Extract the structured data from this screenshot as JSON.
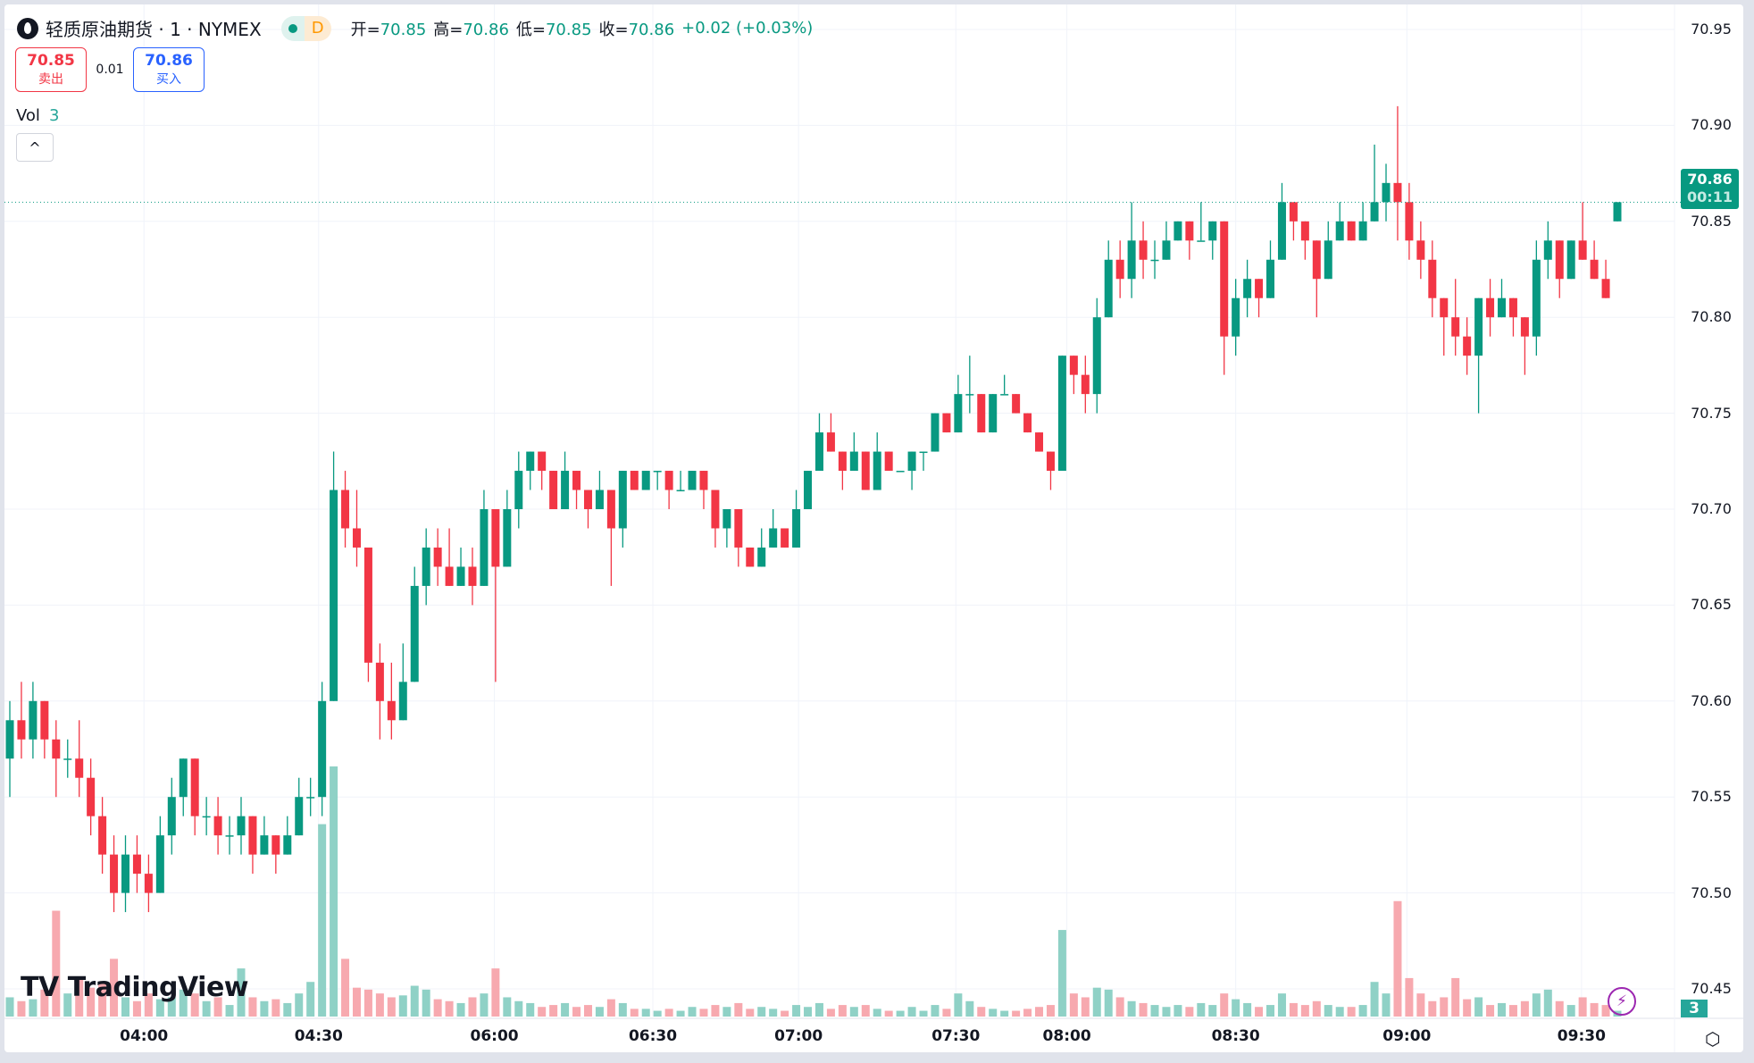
{
  "header": {
    "symbol_title": "轻质原油期货 · 1 · NYMEX",
    "market_status": "D",
    "ohlc": [
      {
        "label": "开=",
        "value": "70.85"
      },
      {
        "label": "高=",
        "value": "70.86"
      },
      {
        "label": "低=",
        "value": "70.85"
      },
      {
        "label": "收=",
        "value": "70.86"
      }
    ],
    "change": "+0.02 (+0.03%)"
  },
  "trade": {
    "sell_price": "70.85",
    "sell_label": "卖出",
    "spread": "0.01",
    "buy_price": "70.86",
    "buy_label": "买入"
  },
  "volume_legend": {
    "label": "Vol",
    "value": "3"
  },
  "collapse_label": "^",
  "watermark": "TradingView",
  "current_price": {
    "price": "70.86",
    "countdown": "00:11"
  },
  "volume_tag": "3",
  "colors": {
    "up": "#089981",
    "down": "#f23645",
    "vol_up": "#8fd1c6",
    "vol_down": "#f7a9af",
    "grid": "#f0f3fa"
  },
  "icons": {
    "logo": "oil-drop-icon",
    "alert": "lightning-icon",
    "settings": "hexagon-settings-icon"
  },
  "chart_data": {
    "type": "candlestick",
    "price_ticks": [
      "70.95",
      "70.90",
      "70.85",
      "70.80",
      "70.75",
      "70.70",
      "70.65",
      "70.60",
      "70.55",
      "70.50",
      "70.45"
    ],
    "ylim": [
      70.45,
      70.95
    ],
    "time_ticks": [
      {
        "label": "04:00",
        "bar": 11.6
      },
      {
        "label": "04:30",
        "bar": 26.7
      },
      {
        "label": "06:00",
        "bar": 41.9
      },
      {
        "label": "06:30",
        "bar": 55.6
      },
      {
        "label": "07:00",
        "bar": 68.2
      },
      {
        "label": "07:30",
        "bar": 81.8
      },
      {
        "label": "08:00",
        "bar": 91.4
      },
      {
        "label": "08:30",
        "bar": 106
      },
      {
        "label": "09:00",
        "bar": 120.8
      },
      {
        "label": "09:30",
        "bar": 135.9
      }
    ],
    "grid": true,
    "last_price": 70.86,
    "candles_ohlcv": [
      [
        70.57,
        70.6,
        70.55,
        70.59,
        10
      ],
      [
        70.59,
        70.61,
        70.57,
        70.58,
        8
      ],
      [
        70.58,
        70.61,
        70.57,
        70.6,
        9
      ],
      [
        70.6,
        70.6,
        70.57,
        70.58,
        14
      ],
      [
        70.58,
        70.59,
        70.55,
        70.57,
        55
      ],
      [
        70.57,
        70.58,
        70.56,
        70.57,
        12
      ],
      [
        70.57,
        70.59,
        70.55,
        70.56,
        20
      ],
      [
        70.56,
        70.57,
        70.53,
        70.54,
        15
      ],
      [
        70.54,
        70.55,
        70.51,
        70.52,
        18
      ],
      [
        70.52,
        70.53,
        70.49,
        70.5,
        30
      ],
      [
        70.5,
        70.53,
        70.49,
        70.52,
        10
      ],
      [
        70.52,
        70.53,
        70.5,
        70.51,
        8
      ],
      [
        70.51,
        70.52,
        70.49,
        70.5,
        12
      ],
      [
        70.5,
        70.54,
        70.5,
        70.53,
        9
      ],
      [
        70.53,
        70.56,
        70.52,
        70.55,
        10
      ],
      [
        70.55,
        70.57,
        70.54,
        70.57,
        14
      ],
      [
        70.57,
        70.57,
        70.53,
        70.54,
        12
      ],
      [
        70.54,
        70.55,
        70.53,
        70.54,
        8
      ],
      [
        70.54,
        70.55,
        70.52,
        70.53,
        10
      ],
      [
        70.53,
        70.54,
        70.52,
        70.53,
        6
      ],
      [
        70.53,
        70.55,
        70.52,
        70.54,
        25
      ],
      [
        70.54,
        70.54,
        70.51,
        70.52,
        10
      ],
      [
        70.52,
        70.54,
        70.52,
        70.53,
        8
      ],
      [
        70.53,
        70.53,
        70.51,
        70.52,
        9
      ],
      [
        70.52,
        70.54,
        70.52,
        70.53,
        7
      ],
      [
        70.53,
        70.56,
        70.53,
        70.55,
        12
      ],
      [
        70.55,
        70.56,
        70.54,
        70.55,
        18
      ],
      [
        70.55,
        70.61,
        70.54,
        70.6,
        100
      ],
      [
        70.6,
        70.73,
        70.6,
        70.71,
        130
      ],
      [
        70.71,
        70.72,
        70.68,
        70.69,
        30
      ],
      [
        70.69,
        70.71,
        70.67,
        70.68,
        15
      ],
      [
        70.68,
        70.68,
        70.61,
        70.62,
        14
      ],
      [
        70.62,
        70.63,
        70.58,
        70.6,
        12
      ],
      [
        70.6,
        70.62,
        70.58,
        70.59,
        10
      ],
      [
        70.59,
        70.63,
        70.59,
        70.61,
        11
      ],
      [
        70.61,
        70.67,
        70.61,
        70.66,
        16
      ],
      [
        70.66,
        70.69,
        70.65,
        70.68,
        14
      ],
      [
        70.68,
        70.69,
        70.66,
        70.67,
        9
      ],
      [
        70.67,
        70.69,
        70.66,
        70.66,
        8
      ],
      [
        70.66,
        70.68,
        70.66,
        70.67,
        7
      ],
      [
        70.67,
        70.68,
        70.65,
        70.66,
        10
      ],
      [
        70.66,
        70.71,
        70.66,
        70.7,
        12
      ],
      [
        70.7,
        70.7,
        70.61,
        70.67,
        25
      ],
      [
        70.67,
        70.71,
        70.67,
        70.7,
        10
      ],
      [
        70.7,
        70.73,
        70.69,
        70.72,
        8
      ],
      [
        70.72,
        70.73,
        70.71,
        70.73,
        7
      ],
      [
        70.73,
        70.73,
        70.71,
        70.72,
        5
      ],
      [
        70.72,
        70.72,
        70.7,
        70.7,
        6
      ],
      [
        70.7,
        70.73,
        70.7,
        70.72,
        7
      ],
      [
        70.72,
        70.72,
        70.7,
        70.71,
        5
      ],
      [
        70.71,
        70.71,
        70.69,
        70.7,
        6
      ],
      [
        70.7,
        70.72,
        70.7,
        70.71,
        5
      ],
      [
        70.71,
        70.71,
        70.66,
        70.69,
        9
      ],
      [
        70.69,
        70.72,
        70.68,
        70.72,
        7
      ],
      [
        70.72,
        70.72,
        70.71,
        70.71,
        4
      ],
      [
        70.71,
        70.72,
        70.71,
        70.72,
        4
      ],
      [
        70.72,
        70.72,
        70.71,
        70.72,
        3
      ],
      [
        70.72,
        70.72,
        70.7,
        70.71,
        4
      ],
      [
        70.71,
        70.72,
        70.71,
        70.71,
        3
      ],
      [
        70.71,
        70.72,
        70.71,
        70.72,
        5
      ],
      [
        70.72,
        70.72,
        70.7,
        70.71,
        4
      ],
      [
        70.71,
        70.71,
        70.68,
        70.69,
        6
      ],
      [
        70.69,
        70.7,
        70.68,
        70.7,
        5
      ],
      [
        70.7,
        70.7,
        70.67,
        70.68,
        7
      ],
      [
        70.68,
        70.68,
        70.67,
        70.67,
        4
      ],
      [
        70.67,
        70.69,
        70.67,
        70.68,
        5
      ],
      [
        70.68,
        70.7,
        70.68,
        70.69,
        4
      ],
      [
        70.69,
        70.69,
        70.68,
        70.68,
        3
      ],
      [
        70.68,
        70.71,
        70.68,
        70.7,
        6
      ],
      [
        70.7,
        70.72,
        70.7,
        70.72,
        5
      ],
      [
        70.72,
        70.75,
        70.72,
        70.74,
        7
      ],
      [
        70.74,
        70.75,
        70.73,
        70.73,
        4
      ],
      [
        70.73,
        70.73,
        70.71,
        70.72,
        6
      ],
      [
        70.72,
        70.74,
        70.72,
        70.73,
        5
      ],
      [
        70.73,
        70.73,
        70.71,
        70.71,
        6
      ],
      [
        70.71,
        70.74,
        70.71,
        70.73,
        4
      ],
      [
        70.73,
        70.73,
        70.72,
        70.72,
        3
      ],
      [
        70.72,
        70.72,
        70.72,
        70.72,
        3
      ],
      [
        70.72,
        70.73,
        70.71,
        70.73,
        5
      ],
      [
        70.73,
        70.73,
        70.72,
        70.73,
        3
      ],
      [
        70.73,
        70.75,
        70.73,
        70.75,
        6
      ],
      [
        70.75,
        70.75,
        70.74,
        70.74,
        4
      ],
      [
        70.74,
        70.77,
        70.74,
        70.76,
        12
      ],
      [
        70.76,
        70.78,
        70.75,
        70.76,
        8
      ],
      [
        70.76,
        70.76,
        70.74,
        70.74,
        5
      ],
      [
        70.74,
        70.76,
        70.74,
        70.76,
        4
      ],
      [
        70.76,
        70.77,
        70.76,
        70.76,
        3
      ],
      [
        70.76,
        70.76,
        70.75,
        70.75,
        3
      ],
      [
        70.75,
        70.75,
        70.74,
        70.74,
        4
      ],
      [
        70.74,
        70.74,
        70.73,
        70.73,
        5
      ],
      [
        70.73,
        70.73,
        70.71,
        70.72,
        6
      ],
      [
        70.72,
        70.78,
        70.72,
        70.78,
        45
      ],
      [
        70.78,
        70.78,
        70.76,
        70.77,
        12
      ],
      [
        70.77,
        70.78,
        70.75,
        70.76,
        10
      ],
      [
        70.76,
        70.81,
        70.75,
        70.8,
        15
      ],
      [
        70.8,
        70.84,
        70.8,
        70.83,
        14
      ],
      [
        70.83,
        70.84,
        70.81,
        70.82,
        10
      ],
      [
        70.82,
        70.86,
        70.81,
        70.84,
        8
      ],
      [
        70.84,
        70.85,
        70.82,
        70.83,
        7
      ],
      [
        70.83,
        70.84,
        70.82,
        70.83,
        6
      ],
      [
        70.83,
        70.85,
        70.83,
        70.84,
        5
      ],
      [
        70.84,
        70.85,
        70.84,
        70.85,
        6
      ],
      [
        70.85,
        70.85,
        70.83,
        70.84,
        5
      ],
      [
        70.84,
        70.86,
        70.84,
        70.84,
        7
      ],
      [
        70.84,
        70.85,
        70.83,
        70.85,
        6
      ],
      [
        70.85,
        70.85,
        70.77,
        70.79,
        12
      ],
      [
        70.79,
        70.82,
        70.78,
        70.81,
        9
      ],
      [
        70.81,
        70.83,
        70.8,
        70.82,
        7
      ],
      [
        70.82,
        70.82,
        70.8,
        70.81,
        5
      ],
      [
        70.81,
        70.84,
        70.81,
        70.83,
        6
      ],
      [
        70.83,
        70.87,
        70.83,
        70.86,
        12
      ],
      [
        70.86,
        70.86,
        70.84,
        70.85,
        7
      ],
      [
        70.85,
        70.85,
        70.83,
        70.84,
        6
      ],
      [
        70.84,
        70.84,
        70.8,
        70.82,
        8
      ],
      [
        70.82,
        70.85,
        70.82,
        70.84,
        6
      ],
      [
        70.84,
        70.86,
        70.84,
        70.85,
        5
      ],
      [
        70.85,
        70.85,
        70.84,
        70.84,
        5
      ],
      [
        70.84,
        70.86,
        70.84,
        70.85,
        6
      ],
      [
        70.85,
        70.89,
        70.85,
        70.86,
        18
      ],
      [
        70.86,
        70.88,
        70.85,
        70.87,
        12
      ],
      [
        70.87,
        70.91,
        70.84,
        70.86,
        60
      ],
      [
        70.86,
        70.87,
        70.83,
        70.84,
        20
      ],
      [
        70.84,
        70.85,
        70.82,
        70.83,
        12
      ],
      [
        70.83,
        70.84,
        70.8,
        70.81,
        8
      ],
      [
        70.81,
        70.81,
        70.78,
        70.8,
        10
      ],
      [
        70.8,
        70.82,
        70.78,
        70.79,
        20
      ],
      [
        70.79,
        70.8,
        70.77,
        70.78,
        9
      ],
      [
        70.78,
        70.81,
        70.75,
        70.81,
        10
      ],
      [
        70.81,
        70.82,
        70.79,
        70.8,
        6
      ],
      [
        70.8,
        70.82,
        70.8,
        70.81,
        7
      ],
      [
        70.81,
        70.81,
        70.79,
        70.8,
        6
      ],
      [
        70.8,
        70.8,
        70.77,
        70.79,
        8
      ],
      [
        70.79,
        70.84,
        70.78,
        70.83,
        12
      ],
      [
        70.83,
        70.85,
        70.82,
        70.84,
        14
      ],
      [
        70.84,
        70.84,
        70.81,
        70.82,
        8
      ],
      [
        70.82,
        70.84,
        70.82,
        70.84,
        6
      ],
      [
        70.84,
        70.86,
        70.83,
        70.83,
        10
      ],
      [
        70.83,
        70.84,
        70.82,
        70.82,
        7
      ],
      [
        70.82,
        70.83,
        70.81,
        70.81,
        6
      ],
      [
        70.85,
        70.86,
        70.85,
        70.86,
        3
      ]
    ]
  }
}
